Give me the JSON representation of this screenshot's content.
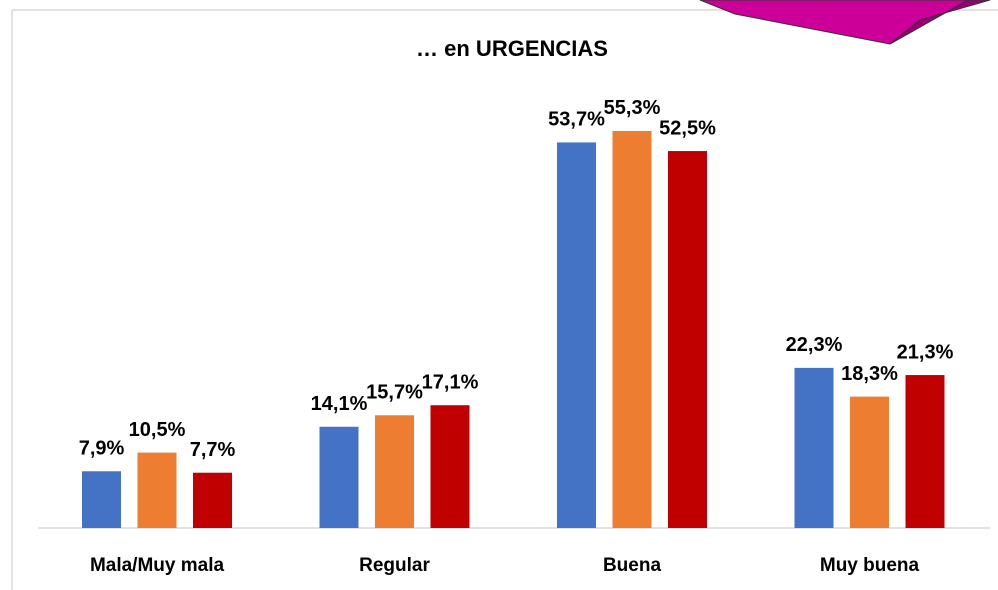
{
  "chart_data": {
    "type": "bar",
    "title": "… en URGENCIAS",
    "categories": [
      "Mala/Muy mala",
      "Regular",
      "Buena",
      "Muy buena"
    ],
    "series": [
      {
        "color": "#4472c4",
        "values": [
          7.9,
          14.1,
          53.7,
          22.3
        ],
        "value_labels": [
          "7,9%",
          "14,1%",
          "53,7%",
          "22,3%"
        ]
      },
      {
        "color": "#ed7d31",
        "values": [
          10.5,
          15.7,
          55.3,
          18.3
        ],
        "value_labels": [
          "10,5%",
          "15,7%",
          "55,3%",
          "18,3%"
        ]
      },
      {
        "color": "#c00000",
        "values": [
          7.7,
          17.1,
          52.5,
          21.3
        ],
        "value_labels": [
          "7,7%",
          "17,1%",
          "52,5%",
          "21,3%"
        ]
      }
    ]
  }
}
